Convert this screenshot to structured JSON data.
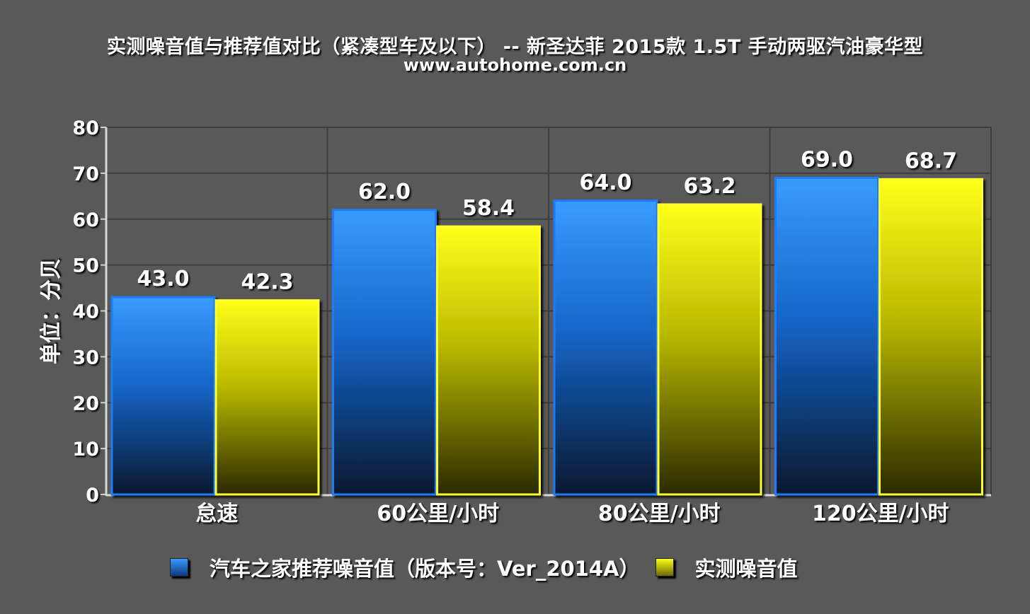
{
  "title": "实测噪音值与推荐值对比（紧凑型车及以下） -- 新圣达菲 2015款 1.5T 手动两驱汽油豪华型",
  "subtitle": "www.autohome.com.cn",
  "colors": {
    "background": "#595959",
    "series_recommended": "#2f8dff",
    "series_measured": "#ffff1a"
  },
  "chart_data": {
    "type": "bar",
    "categories": [
      "怠速",
      "60公里/小时",
      "80公里/小时",
      "120公里/小时"
    ],
    "series": [
      {
        "name": "汽车之家推荐噪音值（版本号：Ver_2014A）",
        "values": [
          43.0,
          62.0,
          64.0,
          69.0
        ]
      },
      {
        "name": "实测噪音值",
        "values": [
          42.3,
          58.4,
          63.2,
          68.7
        ]
      }
    ],
    "ylabel": "单位：分贝",
    "ylim": [
      0,
      80
    ],
    "yticks": [
      0,
      10,
      20,
      30,
      40,
      50,
      60,
      70,
      80
    ],
    "grid": true,
    "legend_position": "bottom"
  }
}
